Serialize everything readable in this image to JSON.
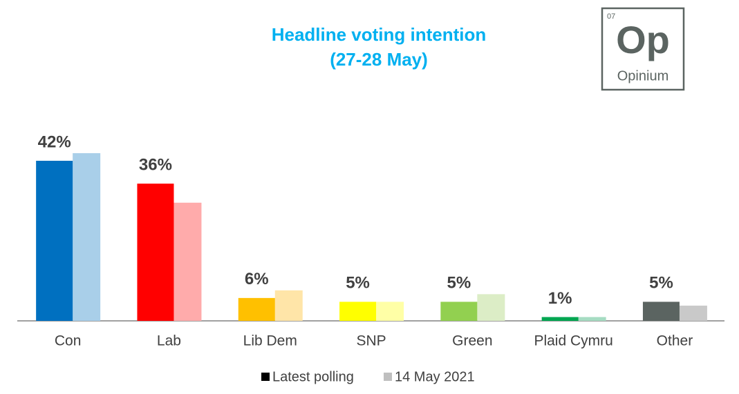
{
  "chart_data": {
    "type": "bar",
    "title": "Headline voting intention",
    "subtitle": "(27-28 May)",
    "title_color": "#00b0f0",
    "categories": [
      "Con",
      "Lab",
      "Lib Dem",
      "SNP",
      "Green",
      "Plaid Cymru",
      "Other"
    ],
    "series": [
      {
        "name": "Latest polling",
        "color": "#000000",
        "colors": [
          "#0070c0",
          "#ff0000",
          "#ffc000",
          "#ffff00",
          "#92d050",
          "#00a651",
          "#5b6461"
        ],
        "values": [
          42,
          36,
          6,
          5,
          5,
          1,
          5
        ],
        "value_labels": [
          "42%",
          "36%",
          "6%",
          "5%",
          "5%",
          "1%",
          "5%"
        ]
      },
      {
        "name": "14 May 2021",
        "color": "#bfbfbf",
        "colors": [
          "#a9cfe9",
          "#ffabab",
          "#ffe5a8",
          "#ffffa6",
          "#dcedc6",
          "#a6dcc2",
          "#c9c9c9"
        ],
        "values": [
          44,
          31,
          8,
          5,
          7,
          1,
          4
        ]
      }
    ],
    "legend": "bottom"
  },
  "logo": {
    "number": "07",
    "symbol": "Op",
    "name": "Opinium"
  }
}
